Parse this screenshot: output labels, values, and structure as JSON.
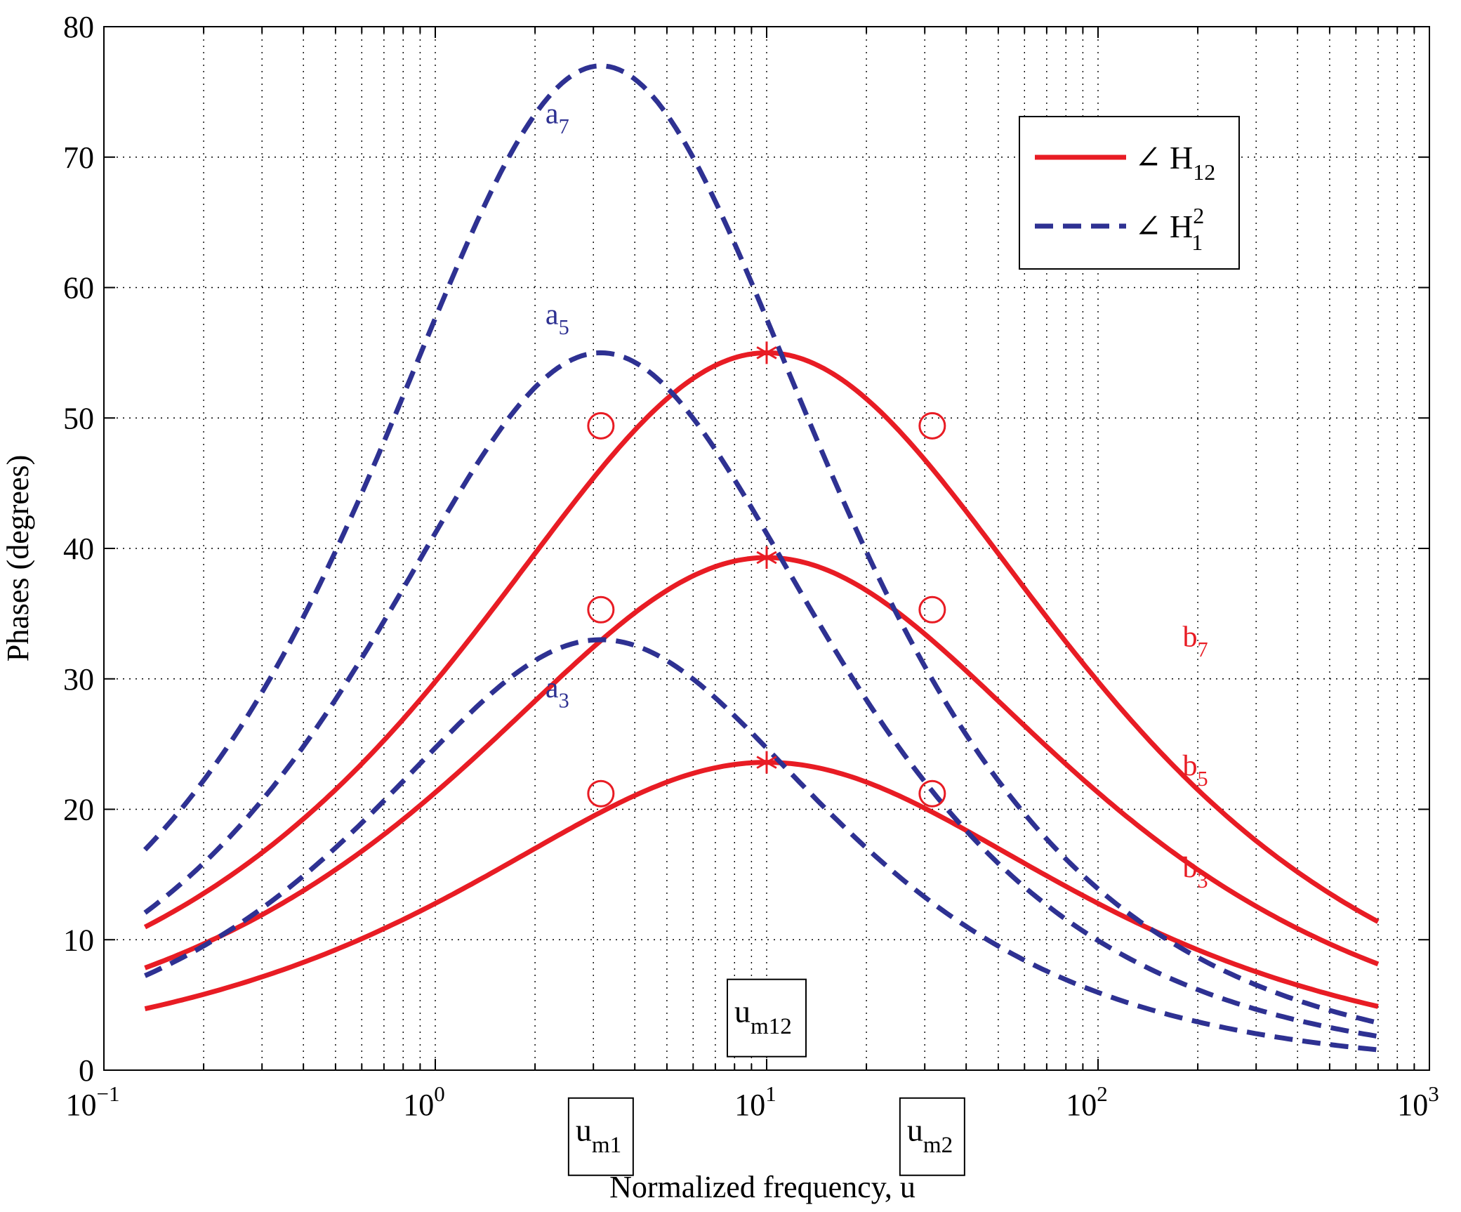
{
  "chart_data": {
    "type": "line",
    "xscale": "log",
    "title": "",
    "xlabel": "Normalized frequency, u",
    "ylabel": "Phases (degrees)",
    "xlim": [
      0.1,
      1000
    ],
    "ylim": [
      0,
      80
    ],
    "grid": true,
    "x_tick_labels": [
      {
        "base": "10",
        "exp": "−1",
        "value": 0.1
      },
      {
        "base": "10",
        "exp": "0",
        "value": 1
      },
      {
        "base": "10",
        "exp": "1",
        "value": 10
      },
      {
        "base": "10",
        "exp": "2",
        "value": 100
      },
      {
        "base": "10",
        "exp": "3",
        "value": 1000
      }
    ],
    "y_ticks": [
      0,
      10,
      20,
      30,
      40,
      50,
      60,
      70,
      80
    ],
    "colors": {
      "H12": "#e81c24",
      "H1_2": "#2e3192"
    },
    "legend": {
      "placement": "top-right",
      "entries": [
        {
          "symbol": "∠",
          "base": "H",
          "sub": "12",
          "sup": "",
          "style": "solid",
          "color": "#e81c24"
        },
        {
          "symbol": "∠",
          "base": "H",
          "sub": "1",
          "sup": "2",
          "style": "dashed",
          "color": "#2e3192"
        }
      ]
    },
    "series": [
      {
        "name": "b3",
        "group": "H12",
        "style": "solid",
        "u_peak": 10,
        "peak_deg": 23.6,
        "log_width": 0.94,
        "label": {
          "base": "b",
          "sub": "3",
          "at_u": 180,
          "at_deg": 14.8
        }
      },
      {
        "name": "b5",
        "group": "H12",
        "style": "solid",
        "u_peak": 10,
        "peak_deg": 39.3,
        "log_width": 0.94,
        "label": {
          "base": "b",
          "sub": "5",
          "at_u": 180,
          "at_deg": 22.6
        }
      },
      {
        "name": "b7",
        "group": "H12",
        "style": "solid",
        "u_peak": 10,
        "peak_deg": 55.0,
        "log_width": 0.94,
        "label": {
          "base": "b",
          "sub": "7",
          "at_u": 180,
          "at_deg": 32.5
        }
      },
      {
        "name": "a3",
        "group": "H1_2",
        "style": "dashed",
        "u_peak": 3.16,
        "peak_deg": 33.0,
        "log_width": 0.72,
        "label": {
          "base": "a",
          "sub": "3",
          "at_u": 2.15,
          "at_deg": 28.6
        }
      },
      {
        "name": "a5",
        "group": "H1_2",
        "style": "dashed",
        "u_peak": 3.16,
        "peak_deg": 55.0,
        "log_width": 0.72,
        "label": {
          "base": "a",
          "sub": "5",
          "at_u": 2.15,
          "at_deg": 57.2
        }
      },
      {
        "name": "a7",
        "group": "H1_2",
        "style": "dashed",
        "u_peak": 3.16,
        "peak_deg": 77.0,
        "log_width": 0.72,
        "label": {
          "base": "a",
          "sub": "7",
          "at_u": 2.15,
          "at_deg": 72.6
        }
      }
    ],
    "u_range": [
      0.133,
      700
    ],
    "markers": {
      "circles": [
        {
          "u": 3.16,
          "deg": 21.2
        },
        {
          "u": 3.16,
          "deg": 35.3
        },
        {
          "u": 3.16,
          "deg": 49.4
        },
        {
          "u": 31.6,
          "deg": 21.2
        },
        {
          "u": 31.6,
          "deg": 35.3
        },
        {
          "u": 31.6,
          "deg": 49.4
        }
      ],
      "stars": [
        {
          "u": 10,
          "deg": 23.6
        },
        {
          "u": 10,
          "deg": 39.3
        },
        {
          "u": 10,
          "deg": 55.0
        }
      ]
    },
    "annotations": [
      {
        "base": "u",
        "sub": "m12",
        "u": 10,
        "deg": 4.0,
        "box": true
      },
      {
        "base": "u",
        "sub": "m1",
        "u": 3.16,
        "deg": -5.1,
        "box": true
      },
      {
        "base": "u",
        "sub": "m2",
        "u": 31.6,
        "deg": -5.1,
        "box": true
      }
    ]
  }
}
